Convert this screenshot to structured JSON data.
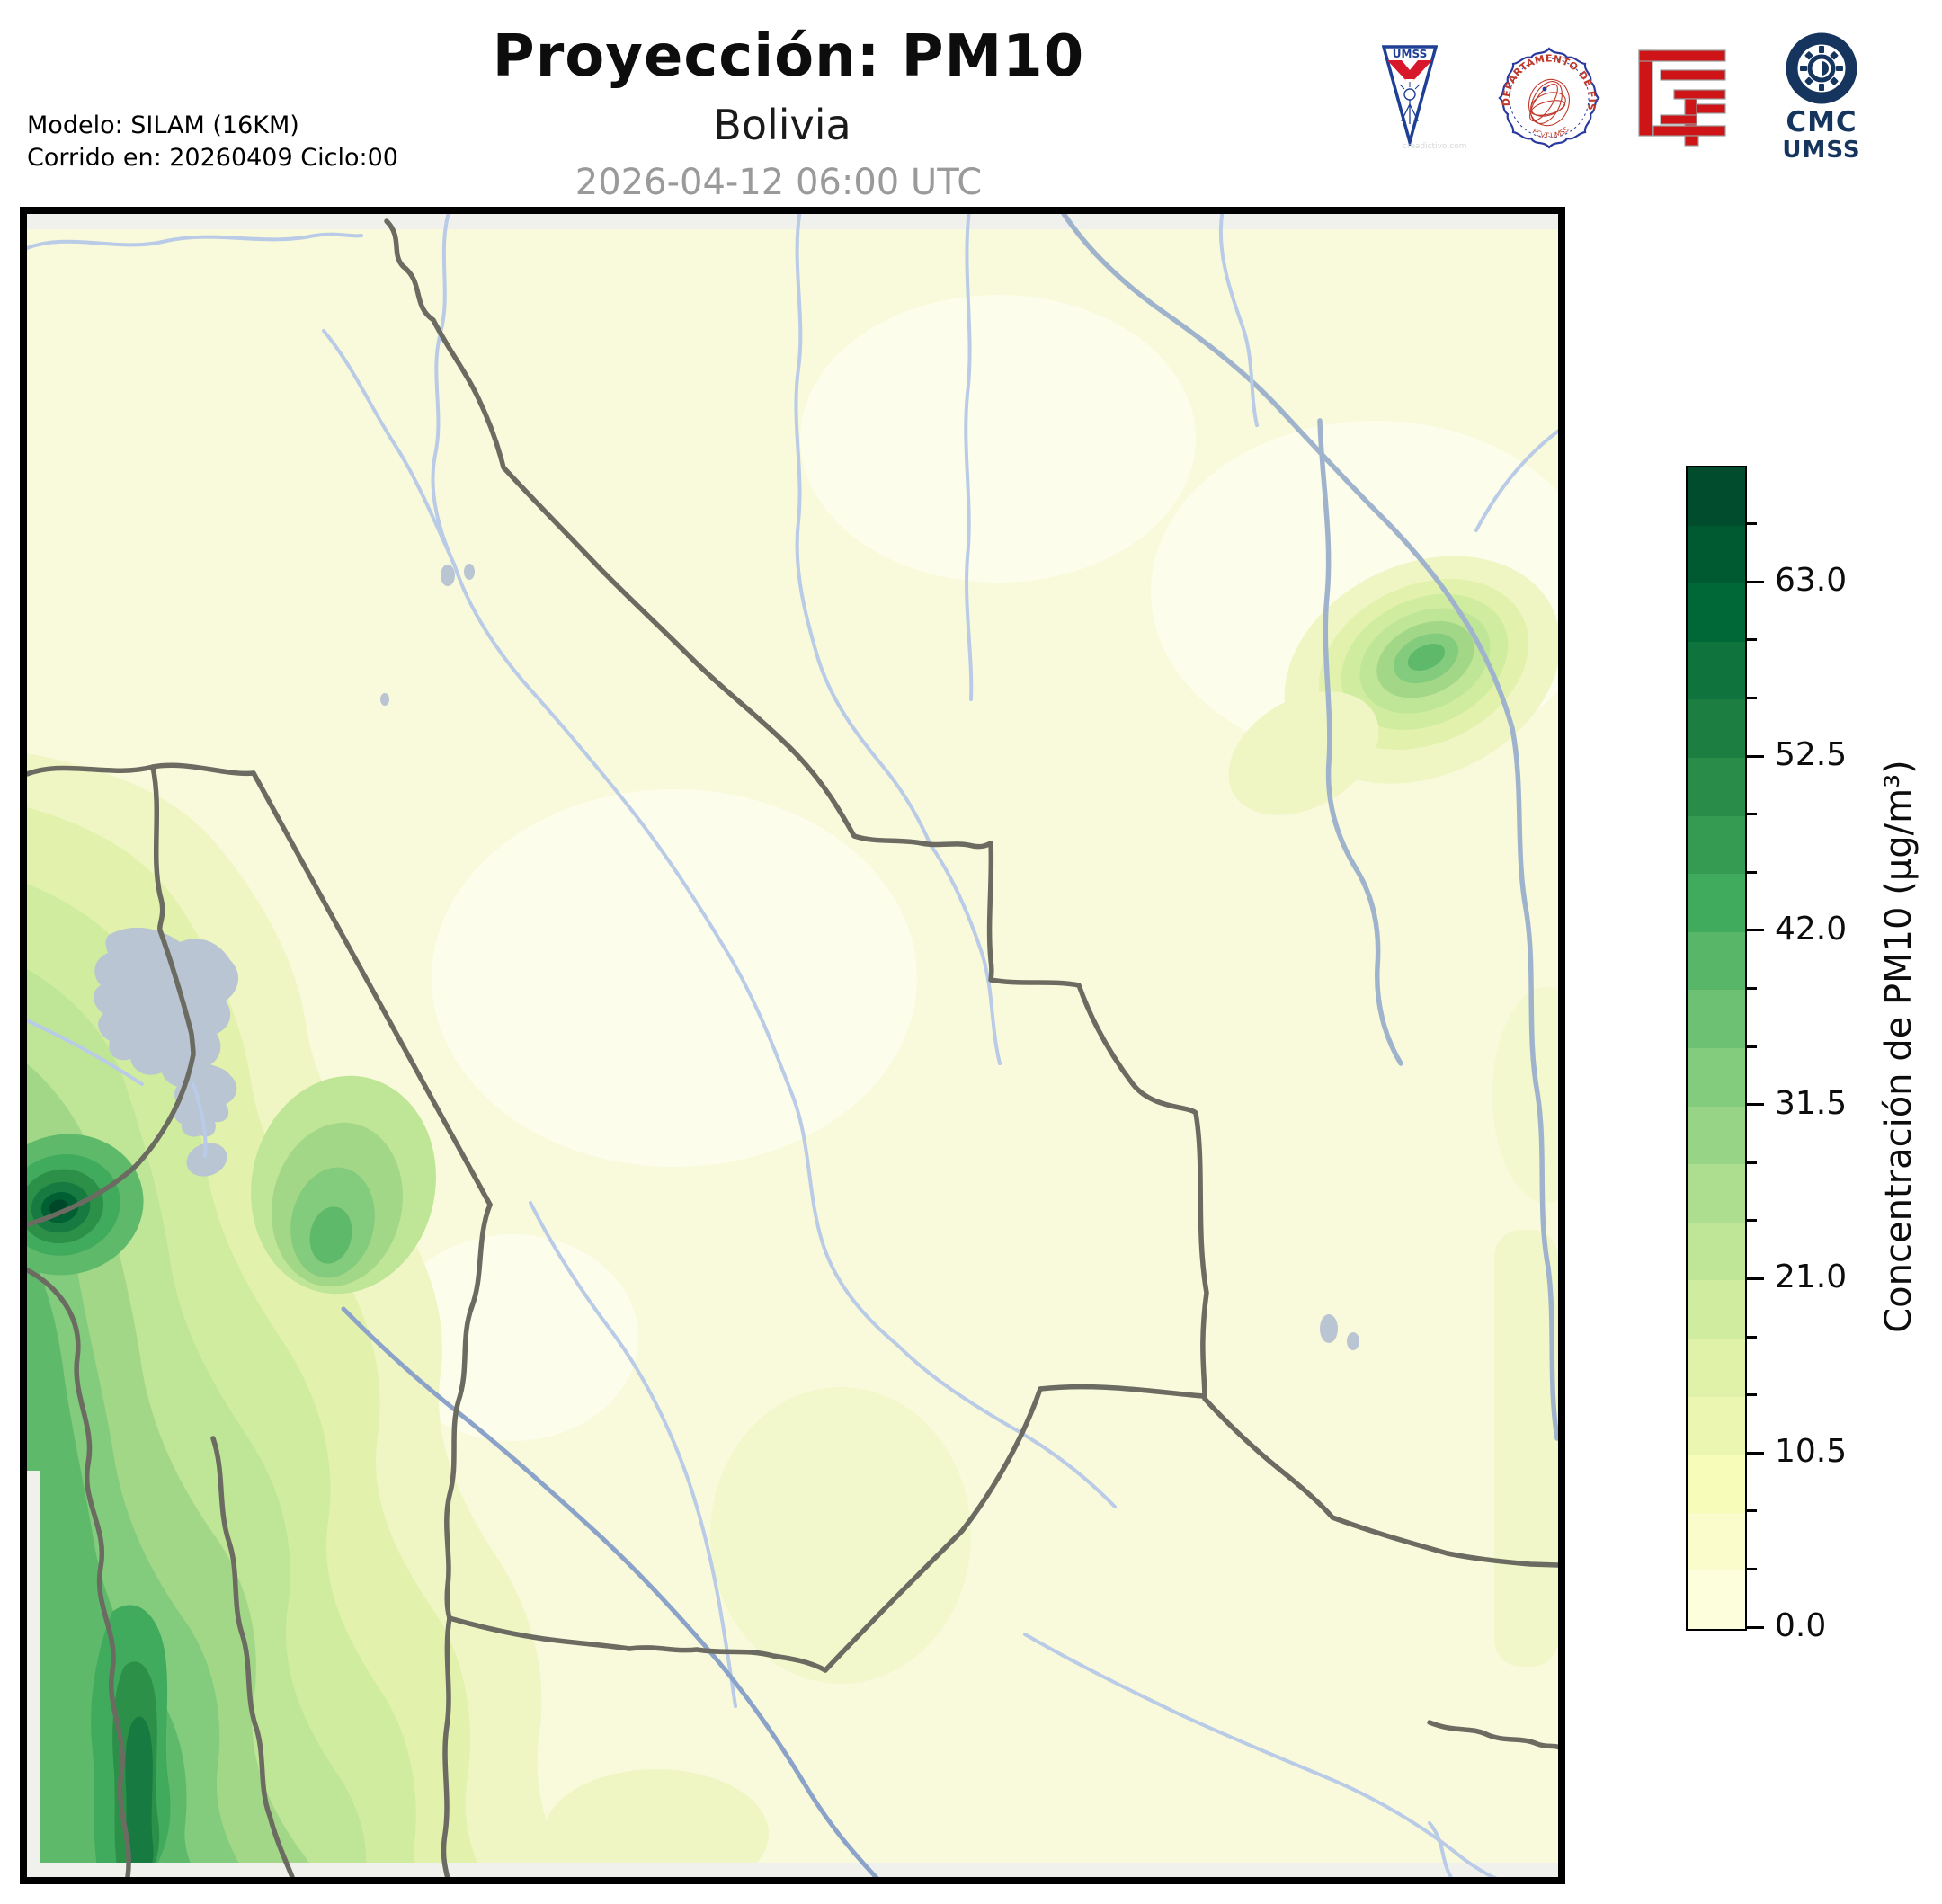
{
  "header": {
    "title": "Proyección: PM10",
    "subtitle": "Bolivia",
    "datetime": "2026-04-12 06:00 UTC",
    "model_line1": "Modelo: SILAM (16KM)",
    "model_line2": "Corrido en: 20260409 Ciclo:00"
  },
  "logos": {
    "umss": {
      "name": "umss-pennant-logo",
      "label": "UMSS",
      "watermark": "creadictivo.com"
    },
    "fisica": {
      "name": "departamento-fisica-seal",
      "arc_text": "DEPARTAMENTO DE FÍSICA",
      "sub_text": "FCyT-UMSS"
    },
    "fcyt": {
      "name": "fcyt-red-logo"
    },
    "cmc": {
      "name": "cmc-umss-logo",
      "line1": "CMC",
      "line2": "UMSS"
    }
  },
  "colorbar": {
    "label": "Concentración de PM10 (µg/m³)",
    "unit": "µg/m³",
    "range": [
      0,
      70
    ],
    "n_segments": 20,
    "segment_step": 3.5,
    "tick_labels": [
      "0.0",
      "10.5",
      "21.0",
      "31.5",
      "42.0",
      "52.5",
      "63.0"
    ],
    "tick_values": [
      0.0,
      10.5,
      21.0,
      31.5,
      42.0,
      52.5,
      63.0
    ],
    "colors_bottom_to_top": [
      "#fdfedc",
      "#fafdcb",
      "#f7fcb9",
      "#ebf7b0",
      "#dff2a7",
      "#d0ec9f",
      "#bfe596",
      "#addd8e",
      "#98d486",
      "#83cb7d",
      "#6dc173",
      "#57b668",
      "#41ab5d",
      "#359b53",
      "#298c48",
      "#1c7e41",
      "#0e733c",
      "#006837",
      "#005a31",
      "#004c2c"
    ]
  },
  "map": {
    "palette": {
      "background": "#f9fadb",
      "domain_margin": "#f0f1ec",
      "pale_patch": "#fcfdea",
      "level1": "#eff6c4",
      "level2": "#e2f1ab",
      "level3": "#d0ec9f",
      "level4": "#bfe596",
      "level5": "#a3d788",
      "level6": "#83cb7d",
      "level7": "#5fb96b",
      "core1": "#41ab5d",
      "core2": "#2d9049",
      "core3": "#177a40",
      "core4": "#006033",
      "core5": "#00472a",
      "river": "#b9cbe6",
      "river_major": "#9fb4cc",
      "river_dark": "#8ba3c9",
      "border_line": "#6b6b61",
      "lake": "#b9c5d2",
      "frame": "#000000"
    }
  },
  "chart_data": {
    "type": "heatmap",
    "title": "Proyección: PM10",
    "subtitle": "Bolivia",
    "timestamp": "2026-04-12 06:00 UTC",
    "variable": "Concentración de PM10",
    "units": "µg/m³",
    "colorbar_ticks": [
      0.0,
      10.5,
      21.0,
      31.5,
      42.0,
      52.5,
      63.0
    ],
    "colorbar_minor_step": 3.5,
    "value_range": [
      0,
      70
    ],
    "legend_position": "right",
    "notable_features": [
      {
        "name": "andes-west-band",
        "description": "Elevated PM10 band along western Andes / Chile border with two dark maxima",
        "approx_peak_ugm3": 70
      },
      {
        "name": "northeast-hotspot",
        "description": "Localized concentric hotspot in northeast Bolivia near a river",
        "approx_peak_ugm3": 25
      },
      {
        "name": "lowlands",
        "description": "Low concentrations (0-7 µg/m³) over most of central and eastern Bolivia",
        "approx_peak_ugm3": 7
      }
    ]
  }
}
